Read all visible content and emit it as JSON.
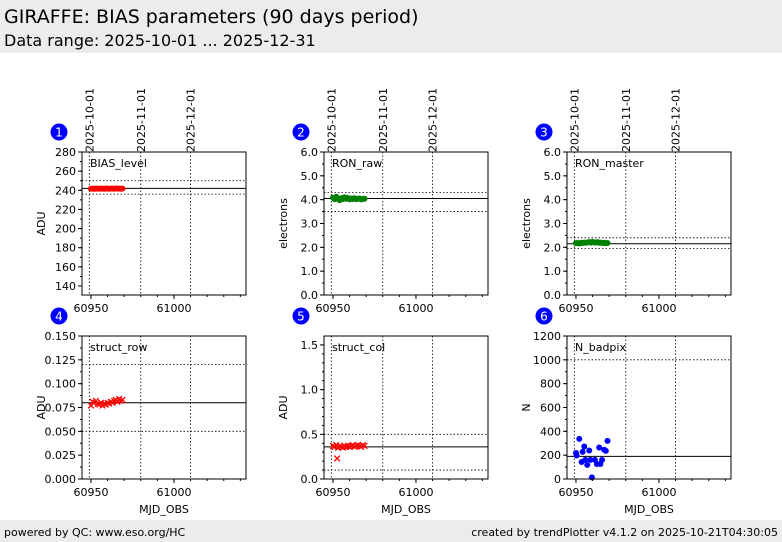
{
  "header": {
    "title": "GIRAFFE: BIAS parameters (90 days period)",
    "range": "Data range: 2025-10-01 ... 2025-12-31"
  },
  "footer": {
    "left": "powered by QC: www.eso.org/HC",
    "right": "created by trendPlotter v4.1.2 on 2025-10-21T04:30:05"
  },
  "date_ticks": [
    {
      "label": "2025-10-01",
      "mjd": 60949
    },
    {
      "label": "2025-11-01",
      "mjd": 60980
    },
    {
      "label": "2025-12-01",
      "mjd": 61010
    }
  ],
  "colors": {
    "red": "#ff0000",
    "green": "#008000",
    "blue": "#0000ff",
    "badge": "#0000ff"
  },
  "chart_data": [
    {
      "type": "scatter",
      "badge": "1",
      "title": "BIAS_level",
      "ylabel": "ADU",
      "xlabel": "",
      "xlim": [
        60944.6,
        61043.4
      ],
      "ylim": [
        130.6,
        280
      ],
      "xticks": [
        60950,
        61000
      ],
      "yticks": [
        140,
        160,
        180,
        200,
        220,
        240,
        260,
        280
      ],
      "ytick_decimals": 0,
      "yminor": 10,
      "reference": 242,
      "limits": [
        250,
        236
      ],
      "marker": "circle",
      "color": "#ff0000",
      "x": [
        60950,
        60951,
        60952,
        60953,
        60954,
        60955,
        60956,
        60957,
        60958,
        60959,
        60960,
        60961,
        60962,
        60963,
        60964,
        60965,
        60966,
        60967,
        60968,
        60969
      ],
      "y": [
        241.6,
        241.8,
        241.5,
        241.9,
        241.7,
        241.6,
        241.8,
        241.7,
        241.5,
        241.9,
        241.7,
        241.6,
        241.8,
        241.7,
        241.6,
        241.9,
        241.8,
        241.7,
        241.6,
        241.8
      ]
    },
    {
      "type": "scatter",
      "badge": "2",
      "title": "RON_raw",
      "ylabel": "electrons",
      "xlabel": "",
      "xlim": [
        60944.6,
        61043.4
      ],
      "ylim": [
        0,
        6
      ],
      "xticks": [
        60950,
        61000
      ],
      "yticks": [
        0,
        1,
        2,
        3,
        4,
        5,
        6
      ],
      "ytick_decimals": 1,
      "yminor": 0.5,
      "reference": 4.05,
      "limits": [
        4.3,
        3.5
      ],
      "marker": "circle",
      "color": "#008000",
      "x": [
        60950,
        60951,
        60952,
        60953,
        60954,
        60955,
        60956,
        60957,
        60958,
        60959,
        60960,
        60961,
        60962,
        60963,
        60964,
        60965,
        60966,
        60967,
        60968,
        60969
      ],
      "y": [
        4.08,
        4.02,
        4.12,
        4.05,
        3.98,
        4.06,
        4.03,
        4.1,
        4.04,
        4.07,
        4.01,
        4.05,
        4.03,
        4.06,
        4.02,
        4.04,
        4.05,
        4.01,
        4.03,
        4.04
      ]
    },
    {
      "type": "scatter",
      "badge": "3",
      "title": "RON_master",
      "ylabel": "electrons",
      "xlabel": "",
      "xlim": [
        60944.6,
        61043.4
      ],
      "ylim": [
        0,
        6
      ],
      "xticks": [
        60950,
        61000
      ],
      "yticks": [
        0,
        1,
        2,
        3,
        4,
        5,
        6
      ],
      "ytick_decimals": 1,
      "yminor": 0.5,
      "reference": 2.15,
      "limits": [
        2.4,
        1.95
      ],
      "marker": "circle",
      "color": "#008000",
      "x": [
        60950,
        60951,
        60952,
        60953,
        60954,
        60955,
        60956,
        60957,
        60958,
        60959,
        60960,
        60961,
        60962,
        60963,
        60964,
        60965,
        60966,
        60967,
        60968,
        60969
      ],
      "y": [
        2.17,
        2.18,
        2.16,
        2.19,
        2.18,
        2.2,
        2.19,
        2.21,
        2.22,
        2.2,
        2.23,
        2.21,
        2.2,
        2.22,
        2.19,
        2.2,
        2.18,
        2.19,
        2.17,
        2.18
      ]
    },
    {
      "type": "scatter",
      "badge": "4",
      "title": "struct_row",
      "ylabel": "ADU",
      "xlabel": "MJD_OBS",
      "xlim": [
        60944.6,
        61043.4
      ],
      "ylim": [
        0,
        0.15
      ],
      "xticks": [
        60950,
        61000
      ],
      "yticks": [
        0,
        0.025,
        0.05,
        0.075,
        0.1,
        0.125,
        0.15
      ],
      "ytick_decimals": 3,
      "yminor": 0.0125,
      "reference": 0.08,
      "limits": [
        0.12,
        0.05
      ],
      "marker": "x",
      "color": "#ff0000",
      "x": [
        60950,
        60951,
        60952,
        60953,
        60954,
        60955,
        60956,
        60957,
        60958,
        60959,
        60960,
        60961,
        60962,
        60963,
        60964,
        60965,
        60966,
        60967,
        60968,
        60969
      ],
      "y": [
        0.077,
        0.081,
        0.08,
        0.082,
        0.079,
        0.078,
        0.08,
        0.077,
        0.079,
        0.078,
        0.08,
        0.079,
        0.081,
        0.08,
        0.082,
        0.083,
        0.081,
        0.084,
        0.082,
        0.083
      ]
    },
    {
      "type": "scatter",
      "badge": "5",
      "title": "struct_col",
      "ylabel": "ADU",
      "xlabel": "MJD_OBS",
      "xlim": [
        60944.6,
        61043.4
      ],
      "ylim": [
        0,
        1.6
      ],
      "xticks": [
        60950,
        61000
      ],
      "yticks": [
        0,
        0.5,
        1.0,
        1.5
      ],
      "ytick_decimals": 1,
      "yminor": 0.1,
      "reference": 0.36,
      "limits": [
        0.5,
        0.1
      ],
      "marker": "x",
      "color": "#ff0000",
      "x": [
        60950,
        60951,
        60952,
        60952.5,
        60953,
        60954,
        60955,
        60956,
        60957,
        60958,
        60959,
        60960,
        60961,
        60962,
        60963,
        60964,
        60965,
        60966,
        60967,
        60968,
        60969
      ],
      "y": [
        0.37,
        0.36,
        0.38,
        0.23,
        0.35,
        0.37,
        0.36,
        0.35,
        0.37,
        0.36,
        0.37,
        0.36,
        0.37,
        0.38,
        0.36,
        0.37,
        0.38,
        0.37,
        0.36,
        0.38,
        0.37
      ]
    },
    {
      "type": "scatter",
      "badge": "6",
      "title": "N_badpix",
      "ylabel": "N",
      "xlabel": "MJD_OBS",
      "xlim": [
        60944.6,
        61043.4
      ],
      "ylim": [
        0,
        1200
      ],
      "xticks": [
        60950,
        61000
      ],
      "yticks": [
        0,
        200,
        400,
        600,
        800,
        1000,
        1200
      ],
      "ytick_decimals": 0,
      "yminor": 100,
      "reference": 190,
      "limits": [
        1000,
        0
      ],
      "marker": "circle",
      "color": "#0000ff",
      "x": [
        60950,
        60950.4,
        60952,
        60953.4,
        60954,
        60955,
        60955.6,
        60956.8,
        60958,
        60958.6,
        60959.6,
        60961.4,
        60962.6,
        60964,
        60964.7,
        60965.7,
        60967,
        60968,
        60969
      ],
      "y": [
        219,
        197,
        337,
        143,
        228,
        273,
        160,
        118,
        239,
        160,
        14,
        160,
        126,
        264,
        126,
        160,
        245,
        236,
        320
      ]
    }
  ]
}
